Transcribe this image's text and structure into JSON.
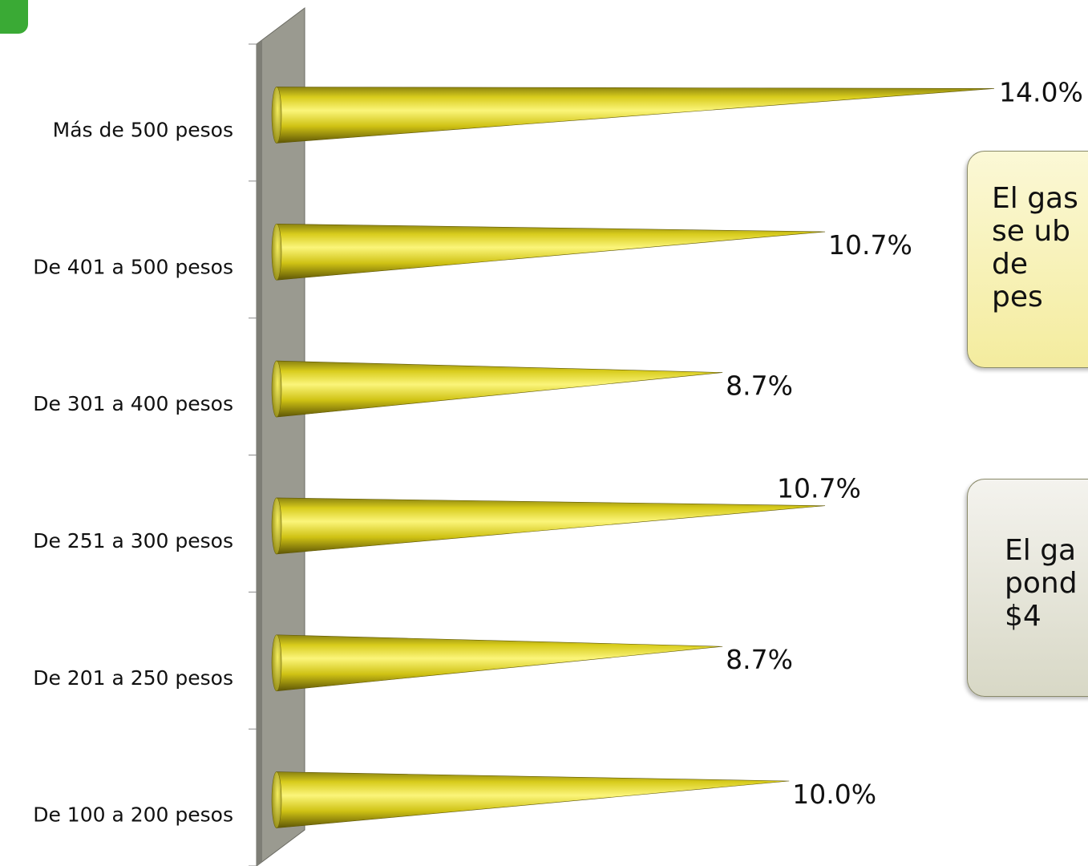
{
  "chart_data": {
    "type": "bar",
    "orientation": "horizontal",
    "bar_shape": "cone",
    "categories": [
      "Más de 500 pesos",
      "De 401 a 500 pesos",
      "De 301 a 400 pesos",
      "De 251 a 300 pesos",
      "De 201 a 250 pesos",
      "De 100 a 200 pesos"
    ],
    "values": [
      14.0,
      10.7,
      8.7,
      10.7,
      8.7,
      10.0
    ],
    "data_labels": [
      "14.0%",
      "10.7%",
      "8.7%",
      "10.7%",
      "8.7%",
      "10.0%"
    ],
    "xlim": [
      0,
      14.0
    ],
    "grid": false,
    "legend": "none",
    "colors": {
      "bar": "#d8cc1c",
      "bar_highlight": "#fbf57a",
      "bar_shadow": "#6e6608",
      "wall": "#9a9a90"
    }
  },
  "callouts": [
    {
      "text": "El gas\nse ub\nde \npes",
      "background": "#f8f2b8"
    },
    {
      "text": "El ga\npond\n$4",
      "background": "#e6e6da"
    }
  ],
  "accent_color": "#3aaa35"
}
